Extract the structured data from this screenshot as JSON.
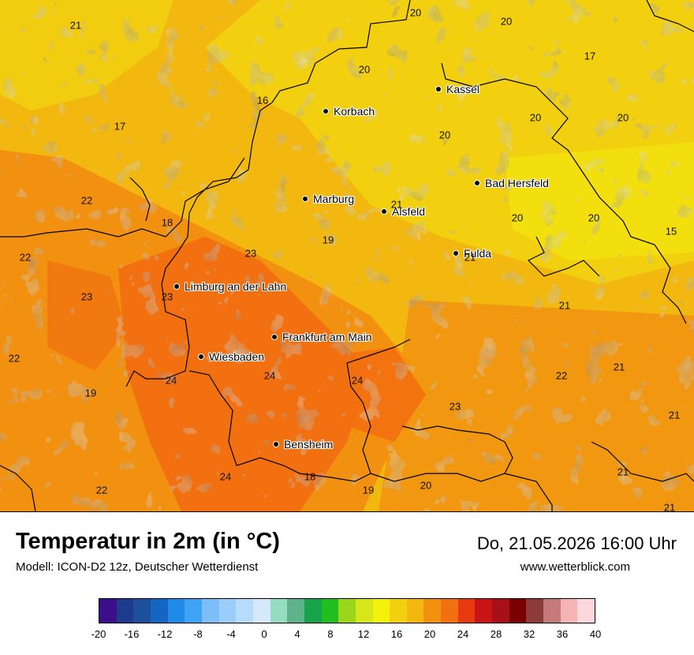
{
  "map": {
    "cities": [
      {
        "name": "Kassel"
      },
      {
        "name": "Korbach"
      },
      {
        "name": "Bad Hersfeld"
      },
      {
        "name": "Marburg"
      },
      {
        "name": "Alsfeld"
      },
      {
        "name": "Fulda"
      },
      {
        "name": "Limburg an der Lahn"
      },
      {
        "name": "Frankfurt am Main"
      },
      {
        "name": "Wiesbaden"
      },
      {
        "name": "Bensheim"
      }
    ],
    "values": [
      "21",
      "20",
      "20",
      "17",
      "20",
      "16",
      "17",
      "20",
      "20",
      "20",
      "22",
      "21",
      "18",
      "20",
      "20",
      "15",
      "22",
      "19",
      "23",
      "21",
      "23",
      "23",
      "21",
      "22",
      "24",
      "24",
      "24",
      "21",
      "22",
      "19",
      "23",
      "21",
      "21",
      "24",
      "18",
      "20",
      "19",
      "22",
      "21"
    ]
  },
  "title": "Temperatur in 2m (in °C)",
  "subtitle": "Modell: ICON-D2 12z, Deutscher Wetterdienst",
  "datetime": "Do, 21.05.2026 16:00 Uhr",
  "website": "www.wetterblick.com",
  "legend": {
    "colors": [
      "#3b0f8a",
      "#1e3a8a",
      "#1e4f9a",
      "#1466c2",
      "#1f8ae8",
      "#3ea3f5",
      "#7dbef8",
      "#9acdf9",
      "#b6dbfb",
      "#d6e9fb",
      "#96dcc1",
      "#5fb38a",
      "#16a34a",
      "#1fbf1f",
      "#9ad61c",
      "#d6e61b",
      "#f2f20d",
      "#f2d00f",
      "#f2b80f",
      "#f29110",
      "#f27010",
      "#e83a10",
      "#c81414",
      "#a80f18",
      "#7a0000",
      "#8c3a3a",
      "#c47a7a",
      "#f4b4b4",
      "#fcd8dc"
    ],
    "ticks": [
      "-20",
      "-16",
      "-12",
      "-8",
      "-4",
      "0",
      "4",
      "8",
      "12",
      "16",
      "20",
      "24",
      "28",
      "32",
      "36",
      "40"
    ]
  }
}
